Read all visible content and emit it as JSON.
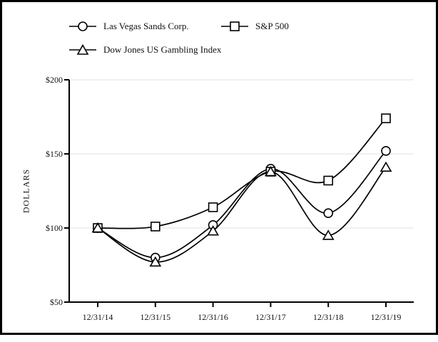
{
  "colors": {
    "line": "#000000",
    "axis": "#000000",
    "gridline": "#ececec",
    "marker_fill": "#ffffff",
    "frame_border": "#000000",
    "background": "#ffffff"
  },
  "legend": {
    "items": [
      {
        "label": "Las Vegas Sands Corp.",
        "marker": "circle"
      },
      {
        "label": "S&P 500",
        "marker": "square"
      },
      {
        "label": "Dow Jones US Gambling Index",
        "marker": "triangle"
      }
    ]
  },
  "chart_data": {
    "type": "line",
    "title": "",
    "xlabel": "",
    "ylabel": "DOLLARS",
    "categories": [
      "12/31/14",
      "12/31/15",
      "12/31/16",
      "12/31/17",
      "12/31/18",
      "12/31/19"
    ],
    "series": [
      {
        "name": "Las Vegas Sands Corp.",
        "marker": "circle",
        "values": [
          100,
          80,
          102,
          140,
          110,
          152
        ]
      },
      {
        "name": "S&P 500",
        "marker": "square",
        "values": [
          100,
          101,
          114,
          138,
          132,
          174
        ]
      },
      {
        "name": "Dow Jones US Gambling Index",
        "marker": "triangle",
        "values": [
          100,
          77,
          98,
          138,
          95,
          141
        ]
      }
    ],
    "ylim": [
      50,
      200
    ],
    "ytick_values": [
      50,
      100,
      150,
      200
    ],
    "ytick_labels": [
      "$50",
      "$100",
      "$150",
      "$200"
    ],
    "grid": true,
    "legend_position": "top",
    "curve_style": "smooth"
  }
}
